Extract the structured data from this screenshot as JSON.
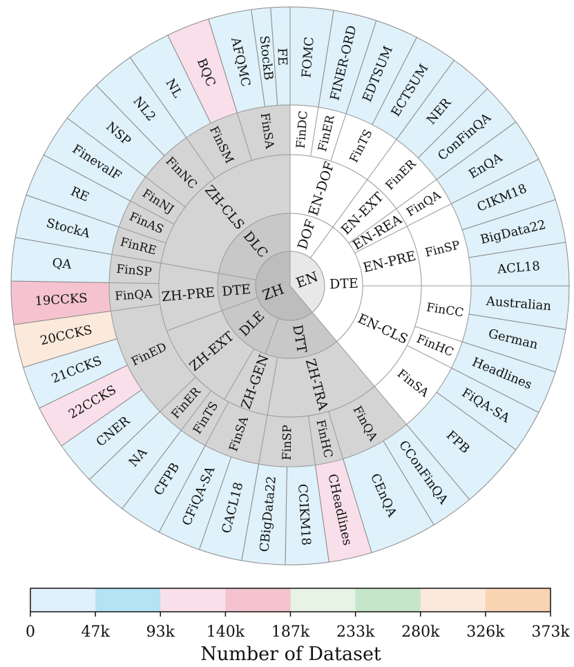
{
  "chart_data": {
    "type": "sunburst",
    "colors": {
      "palette": [
        "#dff1fa",
        "#b4e3f3",
        "#f9dfea",
        "#f4c3cf",
        "#e6f3e5",
        "#c5e6cb",
        "#fbe9db",
        "#f8d4b2"
      ],
      "zh_inner": "#d4d4d4",
      "zh_mid": "#c8c8c8",
      "en_fill": "#ffffff",
      "center_zh": "#bdbdbd",
      "center_en": "#e8e8e8",
      "outer_stroke": "#8a8a8a",
      "inner_stroke": "#9c9c9c"
    },
    "roots": [
      {
        "label": "EN",
        "start": 0,
        "end": 140
      },
      {
        "label": "ZH",
        "start": 140,
        "end": 360
      }
    ],
    "level2": [
      {
        "label": "DOF",
        "root": "EN",
        "start": 0,
        "end": 36
      },
      {
        "label": "DTE",
        "root": "EN",
        "start": 36,
        "end": 140
      },
      {
        "label": "DTT",
        "root": "ZH",
        "start": 140,
        "end": 200
      },
      {
        "label": "DLE",
        "root": "ZH",
        "start": 200,
        "end": 250
      },
      {
        "label": "DTE",
        "root": "ZH",
        "start": 250,
        "end": 280
      },
      {
        "label": "DLC",
        "root": "ZH",
        "start": 280,
        "end": 360
      }
    ],
    "level3": [
      {
        "label": "EN-DOF",
        "root": "EN",
        "start": 0,
        "end": 36
      },
      {
        "label": "EN-EXT",
        "root": "EN",
        "start": 36,
        "end": 54
      },
      {
        "label": "EN-REA",
        "root": "EN",
        "start": 54,
        "end": 63
      },
      {
        "label": "EN-PRE",
        "root": "EN",
        "start": 63,
        "end": 90
      },
      {
        "label": "EN-CLS",
        "root": "EN",
        "start": 90,
        "end": 140
      },
      {
        "label": "ZH-TRA",
        "root": "ZH",
        "start": 140,
        "end": 190
      },
      {
        "label": "ZH-GEN",
        "root": "ZH",
        "start": 190,
        "end": 210
      },
      {
        "label": "ZH-EXT",
        "root": "ZH",
        "start": 210,
        "end": 250
      },
      {
        "label": "ZH-PRE",
        "root": "ZH",
        "start": 250,
        "end": 280
      },
      {
        "label": "ZH-CLS",
        "root": "ZH",
        "start": 280,
        "end": 360
      }
    ],
    "level4": [
      {
        "label": "FinDC",
        "root": "EN",
        "start": 0,
        "end": 9
      },
      {
        "label": "FinER",
        "root": "EN",
        "start": 9,
        "end": 18
      },
      {
        "label": "FinTS",
        "root": "EN",
        "start": 18,
        "end": 36
      },
      {
        "label": "FinER",
        "root": "EN",
        "start": 36,
        "end": 54
      },
      {
        "label": "FinQA",
        "root": "EN",
        "start": 54,
        "end": 63
      },
      {
        "label": "FinSP",
        "root": "EN",
        "start": 63,
        "end": 90
      },
      {
        "label": "FinCC",
        "root": "EN",
        "start": 90,
        "end": 108
      },
      {
        "label": "FinHC",
        "root": "EN",
        "start": 108,
        "end": 117
      },
      {
        "label": "FinSA",
        "root": "EN",
        "start": 117,
        "end": 140
      },
      {
        "label": "FinQA",
        "root": "ZH",
        "start": 140,
        "end": 163
      },
      {
        "label": "FinHC",
        "root": "ZH",
        "start": 163,
        "end": 172
      },
      {
        "label": "FinSP",
        "root": "ZH",
        "start": 172,
        "end": 190
      },
      {
        "label": "FinSA",
        "root": "ZH",
        "start": 190,
        "end": 208
      },
      {
        "label": "FinTS",
        "root": "ZH",
        "start": 208,
        "end": 217
      },
      {
        "label": "FinER",
        "root": "ZH",
        "start": 217,
        "end": 226
      },
      {
        "label": "FinED",
        "root": "ZH",
        "start": 226,
        "end": 262
      },
      {
        "label": "FinQA",
        "root": "ZH",
        "start": 262,
        "end": 271
      },
      {
        "label": "FinSP",
        "root": "ZH",
        "start": 271,
        "end": 280
      },
      {
        "label": "FinRE",
        "root": "ZH",
        "start": 280,
        "end": 289
      },
      {
        "label": "FinAS",
        "root": "ZH",
        "start": 289,
        "end": 298
      },
      {
        "label": "FinNJ",
        "root": "ZH",
        "start": 298,
        "end": 307
      },
      {
        "label": "FinNC",
        "root": "ZH",
        "start": 307,
        "end": 325
      },
      {
        "label": "FinSM",
        "root": "ZH",
        "start": 325,
        "end": 343
      },
      {
        "label": "FinSA",
        "root": "ZH",
        "start": 343,
        "end": 360
      }
    ],
    "datasets": [
      {
        "label": "FOMC",
        "start": 0,
        "end": 9,
        "bin": 0
      },
      {
        "label": "FINER-ORD",
        "start": 9,
        "end": 18,
        "bin": 0
      },
      {
        "label": "EDTSUM",
        "start": 18,
        "end": 27,
        "bin": 0
      },
      {
        "label": "ECTSUM",
        "start": 27,
        "end": 36,
        "bin": 0
      },
      {
        "label": "NER",
        "start": 36,
        "end": 45,
        "bin": 0
      },
      {
        "label": "ConFinQA",
        "start": 45,
        "end": 54,
        "bin": 0
      },
      {
        "label": "EnQA",
        "start": 54,
        "end": 63,
        "bin": 0
      },
      {
        "label": "CIKM18",
        "start": 63,
        "end": 72,
        "bin": 0
      },
      {
        "label": "BigData22",
        "start": 72,
        "end": 81,
        "bin": 0
      },
      {
        "label": "ACL18",
        "start": 81,
        "end": 90,
        "bin": 0
      },
      {
        "label": "Australian",
        "start": 90,
        "end": 99,
        "bin": 0
      },
      {
        "label": "German",
        "start": 99,
        "end": 108,
        "bin": 0
      },
      {
        "label": "Headlines",
        "start": 108,
        "end": 117,
        "bin": 0
      },
      {
        "label": "FiQA-SA",
        "start": 117,
        "end": 126,
        "bin": 0
      },
      {
        "label": "FPB",
        "start": 126,
        "end": 140,
        "bin": 0
      },
      {
        "label": "CConFinQA",
        "start": 140,
        "end": 149,
        "bin": 0
      },
      {
        "label": "CEnQA",
        "start": 149,
        "end": 163,
        "bin": 0
      },
      {
        "label": "CHeadlines",
        "start": 163,
        "end": 172,
        "bin": 2
      },
      {
        "label": "CCIKM18",
        "start": 172,
        "end": 181,
        "bin": 0
      },
      {
        "label": "CBigData22",
        "start": 181,
        "end": 190,
        "bin": 0
      },
      {
        "label": "CACL18",
        "start": 190,
        "end": 199,
        "bin": 0
      },
      {
        "label": "CFiQA-SA",
        "start": 199,
        "end": 208,
        "bin": 0
      },
      {
        "label": "CFPB",
        "start": 208,
        "end": 217,
        "bin": 0
      },
      {
        "label": "NA",
        "start": 217,
        "end": 226,
        "bin": 0
      },
      {
        "label": "CNER",
        "start": 226,
        "end": 235,
        "bin": 0
      },
      {
        "label": "22CCKS",
        "start": 235,
        "end": 244,
        "bin": 2
      },
      {
        "label": "21CCKS",
        "start": 244,
        "end": 253,
        "bin": 0
      },
      {
        "label": "20CCKS",
        "start": 253,
        "end": 262,
        "bin": 6
      },
      {
        "label": "19CCKS",
        "start": 262,
        "end": 271,
        "bin": 3
      },
      {
        "label": "QA",
        "start": 271,
        "end": 280,
        "bin": 0
      },
      {
        "label": "StockA",
        "start": 280,
        "end": 289,
        "bin": 0
      },
      {
        "label": "RE",
        "start": 289,
        "end": 298,
        "bin": 0
      },
      {
        "label": "FinevalF",
        "start": 298,
        "end": 307,
        "bin": 0
      },
      {
        "label": "NSP",
        "start": 307,
        "end": 316,
        "bin": 0
      },
      {
        "label": "NL2",
        "start": 316,
        "end": 325,
        "bin": 0
      },
      {
        "label": "NL",
        "start": 325,
        "end": 334,
        "bin": 0
      },
      {
        "label": "BQC",
        "start": 334,
        "end": 343,
        "bin": 2
      },
      {
        "label": "AFQMC",
        "start": 343,
        "end": 352,
        "bin": 0
      },
      {
        "label": "StockB",
        "start": 352,
        "end": 356,
        "bin": 0
      },
      {
        "label": "FE",
        "start": 356,
        "end": 360,
        "bin": 0
      }
    ],
    "colorbar": {
      "ticks": [
        "0",
        "47k",
        "93k",
        "140k",
        "187k",
        "233k",
        "280k",
        "326k",
        "373k"
      ],
      "title": "Number of Dataset"
    }
  }
}
